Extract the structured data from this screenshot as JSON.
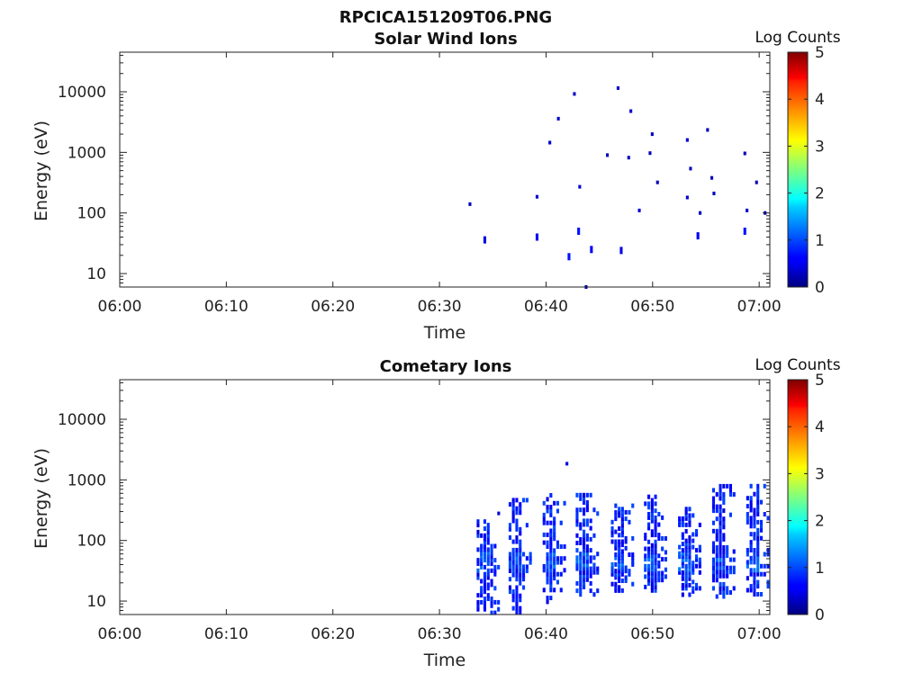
{
  "figure_title": "RPCICA151209T06.PNG",
  "colorbar_label": "Log Counts",
  "colorbar_ticks": [
    "0",
    "1",
    "2",
    "3",
    "4",
    "5"
  ],
  "chart_data": [
    {
      "type": "heatmap",
      "title": "Solar Wind Ions",
      "xlabel": "Time",
      "ylabel": "Energy (eV)",
      "xticks": [
        "06:00",
        "06:10",
        "06:20",
        "06:30",
        "06:40",
        "06:50",
        "07:00"
      ],
      "yticks": [
        "10",
        "100",
        "1000",
        "10000"
      ],
      "xlim_minutes": [
        0,
        61
      ],
      "ylim": [
        6,
        45000
      ],
      "yscale": "log",
      "clim": [
        0,
        5
      ],
      "colormap": "jet",
      "points": [
        [
          32.9,
          140,
          0.3
        ],
        [
          34.3,
          36,
          0.5
        ],
        [
          39.2,
          185,
          0.4
        ],
        [
          39.2,
          40,
          0.6
        ],
        [
          40.4,
          1450,
          0.4
        ],
        [
          41.2,
          3600,
          0.4
        ],
        [
          42.2,
          19,
          0.7
        ],
        [
          42.7,
          9200,
          0.4
        ],
        [
          43.1,
          50,
          0.7
        ],
        [
          43.2,
          270,
          0.4
        ],
        [
          43.8,
          6,
          0.3
        ],
        [
          44.3,
          25,
          0.6
        ],
        [
          45.8,
          900,
          0.3
        ],
        [
          46.8,
          11500,
          0.4
        ],
        [
          47.1,
          24,
          0.5
        ],
        [
          47.8,
          820,
          0.3
        ],
        [
          48.0,
          4800,
          0.4
        ],
        [
          48.8,
          110,
          0.4
        ],
        [
          49.8,
          970,
          0.3
        ],
        [
          50.0,
          2000,
          0.3
        ],
        [
          50.5,
          320,
          0.3
        ],
        [
          53.3,
          1600,
          0.4
        ],
        [
          53.3,
          180,
          0.4
        ],
        [
          53.6,
          540,
          0.3
        ],
        [
          54.3,
          42,
          0.6
        ],
        [
          54.5,
          100,
          0.3
        ],
        [
          55.2,
          2350,
          0.3
        ],
        [
          55.6,
          380,
          0.3
        ],
        [
          55.8,
          210,
          0.3
        ],
        [
          58.7,
          50,
          0.7
        ],
        [
          58.7,
          960,
          0.3
        ],
        [
          58.9,
          110,
          0.4
        ],
        [
          59.8,
          320,
          0.3
        ],
        [
          60.6,
          100,
          0.3
        ]
      ]
    },
    {
      "type": "heatmap",
      "title": "Cometary Ions",
      "xlabel": "Time",
      "ylabel": "Energy (eV)",
      "xticks": [
        "06:00",
        "06:10",
        "06:20",
        "06:30",
        "06:40",
        "06:50",
        "07:00"
      ],
      "yticks": [
        "10",
        "100",
        "1000",
        "10000"
      ],
      "xlim_minutes": [
        0,
        61
      ],
      "ylim": [
        6,
        45000
      ],
      "yscale": "log",
      "clim": [
        0,
        5
      ],
      "colormap": "jet",
      "bursts": [
        {
          "center_minute": 34.3,
          "emax": 250,
          "emin": 6
        },
        {
          "center_minute": 37.3,
          "emax": 500,
          "emin": 6
        },
        {
          "center_minute": 40.5,
          "emax": 600,
          "emin": 9
        },
        {
          "center_minute": 43.6,
          "emax": 600,
          "emin": 12
        },
        {
          "center_minute": 46.9,
          "emax": 450,
          "emin": 14
        },
        {
          "center_minute": 50.0,
          "emax": 560,
          "emin": 14
        },
        {
          "center_minute": 53.2,
          "emax": 350,
          "emin": 12
        },
        {
          "center_minute": 56.4,
          "emax": 850,
          "emin": 11
        },
        {
          "center_minute": 59.6,
          "emax": 850,
          "emin": 12
        }
      ],
      "points": [
        [
          35.6,
          280,
          0.4
        ],
        [
          42.0,
          1850,
          0.4
        ]
      ]
    }
  ]
}
